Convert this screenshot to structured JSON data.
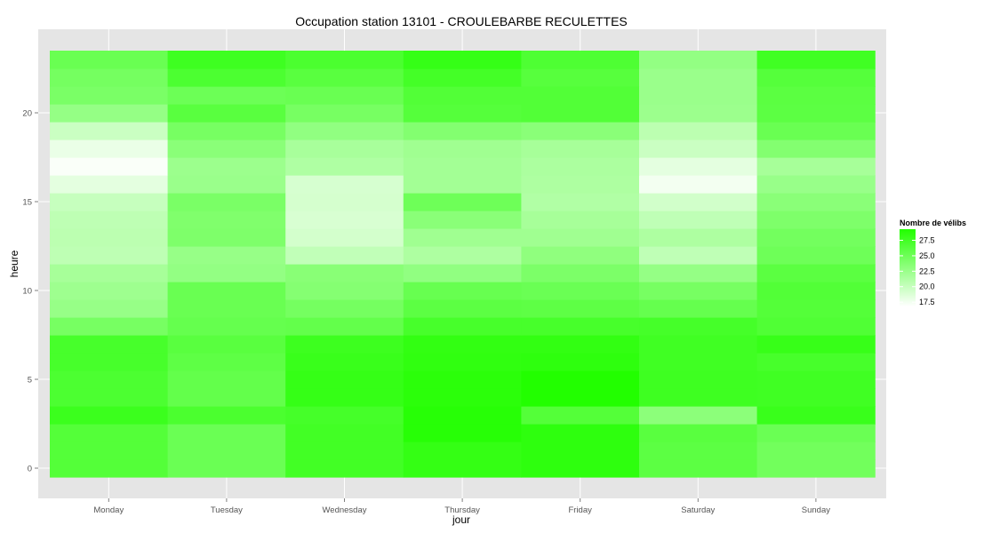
{
  "chart_data": {
    "type": "heatmap",
    "title": "Occupation station 13101 - CROULEBARBE RECULETTES",
    "xlabel": "jour",
    "ylabel": "heure",
    "x": [
      "Monday",
      "Tuesday",
      "Wednesday",
      "Thursday",
      "Friday",
      "Saturday",
      "Sunday"
    ],
    "y": [
      0,
      1,
      2,
      3,
      4,
      5,
      6,
      7,
      8,
      9,
      10,
      11,
      12,
      13,
      14,
      15,
      16,
      17,
      18,
      19,
      20,
      21,
      22,
      23
    ],
    "y_ticks": [
      0,
      5,
      10,
      15,
      20
    ],
    "ylim": [
      -0.5,
      23.5
    ],
    "values": [
      [
        26.5,
        25.2,
        27.5,
        28.3,
        28.6,
        26.0,
        24.8
      ],
      [
        26.5,
        25.2,
        27.5,
        28.3,
        28.6,
        26.0,
        24.8
      ],
      [
        26.5,
        25.2,
        27.5,
        29.0,
        28.6,
        26.2,
        25.2
      ],
      [
        27.9,
        27.0,
        27.3,
        29.0,
        26.5,
        23.3,
        28.0
      ],
      [
        26.9,
        25.6,
        28.2,
        28.8,
        29.3,
        27.7,
        27.6
      ],
      [
        26.9,
        25.6,
        28.2,
        28.8,
        29.3,
        27.7,
        27.6
      ],
      [
        27.2,
        25.9,
        28.0,
        28.5,
        28.6,
        27.6,
        27.2
      ],
      [
        27.2,
        26.2,
        27.8,
        28.4,
        28.4,
        27.6,
        28.1
      ],
      [
        24.5,
        25.5,
        25.6,
        27.2,
        27.2,
        27.3,
        26.7
      ],
      [
        22.7,
        25.3,
        24.6,
        26.0,
        25.9,
        25.5,
        26.5
      ],
      [
        22.3,
        25.3,
        23.7,
        25.4,
        25.2,
        24.5,
        26.6
      ],
      [
        21.8,
        22.9,
        23.5,
        23.0,
        24.2,
        22.8,
        26.1
      ],
      [
        20.5,
        22.7,
        20.3,
        21.4,
        23.1,
        20.4,
        25.0
      ],
      [
        20.6,
        24.1,
        19.3,
        22.2,
        22.2,
        21.4,
        24.7
      ],
      [
        20.5,
        24.0,
        19.0,
        23.4,
        21.8,
        20.4,
        24.1
      ],
      [
        20.0,
        24.3,
        19.2,
        25.0,
        21.2,
        19.4,
        23.4
      ],
      [
        18.3,
        22.5,
        19.1,
        22.0,
        21.4,
        17.5,
        22.6
      ],
      [
        17.1,
        22.4,
        21.3,
        22.0,
        21.5,
        18.3,
        21.8
      ],
      [
        18.0,
        23.4,
        21.7,
        22.2,
        21.8,
        19.8,
        23.8
      ],
      [
        19.8,
        24.5,
        23.0,
        23.8,
        23.4,
        20.6,
        25.3
      ],
      [
        22.8,
        26.2,
        24.5,
        26.4,
        26.6,
        22.4,
        26.0
      ],
      [
        24.3,
        25.1,
        25.3,
        26.6,
        26.6,
        22.5,
        26.1
      ],
      [
        24.6,
        26.9,
        26.2,
        27.4,
        26.3,
        22.5,
        26.4
      ],
      [
        25.3,
        27.7,
        27.0,
        28.2,
        26.8,
        22.9,
        27.6
      ]
    ],
    "color_scale": {
      "low": "#ffffff",
      "high": "#22ff00",
      "min": 16.8,
      "max": 29.3
    },
    "legend": {
      "title": "Nombre de vélibs",
      "labels": [
        "27.5",
        "25.0",
        "22.5",
        "20.0",
        "17.5"
      ],
      "values": [
        27.5,
        25.0,
        22.5,
        20.0,
        17.5
      ],
      "placement": "right"
    },
    "grid": true,
    "panel_color": "#e5e5e5",
    "grid_color": "#ffffff"
  }
}
